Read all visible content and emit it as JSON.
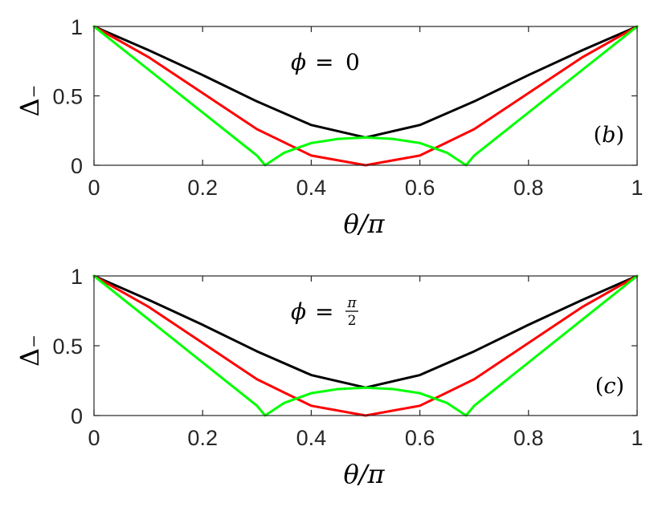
{
  "chart_data": [
    {
      "type": "line",
      "panel_label": "(b)",
      "annotation": {
        "lhs": "ϕ",
        "relation": "=",
        "value": "0"
      },
      "xlabel": "θ/π",
      "ylabel": "Δ₋",
      "xlim": [
        0,
        1
      ],
      "ylim": [
        0,
        1
      ],
      "x_ticks": [
        0,
        0.2,
        0.4,
        0.6,
        0.8,
        1
      ],
      "x_tick_labels": [
        "0",
        "0.2",
        "0.4",
        "0.6",
        "0.8",
        "1"
      ],
      "y_ticks": [
        0,
        0.5,
        1
      ],
      "y_tick_labels": [
        "0",
        "0.5",
        "1"
      ],
      "grid": false,
      "series": [
        {
          "color": "#000000",
          "x": [
            0,
            0.1,
            0.2,
            0.3,
            0.4,
            0.5,
            0.6,
            0.7,
            0.8,
            0.9,
            1
          ],
          "y": [
            1,
            0.83,
            0.65,
            0.46,
            0.29,
            0.2,
            0.29,
            0.46,
            0.65,
            0.83,
            1
          ]
        },
        {
          "color": "#ff0000",
          "x": [
            0,
            0.1,
            0.2,
            0.3,
            0.4,
            0.5,
            0.6,
            0.7,
            0.8,
            0.9,
            1
          ],
          "y": [
            1,
            0.78,
            0.52,
            0.26,
            0.07,
            0.0,
            0.07,
            0.26,
            0.52,
            0.78,
            1
          ]
        },
        {
          "color": "#00ff00",
          "x": [
            0,
            0.1,
            0.2,
            0.3,
            0.315,
            0.35,
            0.4,
            0.45,
            0.5,
            0.55,
            0.6,
            0.65,
            0.685,
            0.7,
            0.8,
            0.9,
            1
          ],
          "y": [
            1,
            0.69,
            0.38,
            0.07,
            0.0,
            0.09,
            0.16,
            0.19,
            0.2,
            0.19,
            0.16,
            0.09,
            0.0,
            0.07,
            0.38,
            0.69,
            1
          ]
        }
      ]
    },
    {
      "type": "line",
      "panel_label": "(c)",
      "annotation": {
        "lhs": "ϕ",
        "relation": "=",
        "numerator": "π",
        "denominator": "2"
      },
      "xlabel": "θ/π",
      "ylabel": "Δ₋",
      "xlim": [
        0,
        1
      ],
      "ylim": [
        0,
        1
      ],
      "x_ticks": [
        0,
        0.2,
        0.4,
        0.6,
        0.8,
        1
      ],
      "x_tick_labels": [
        "0",
        "0.2",
        "0.4",
        "0.6",
        "0.8",
        "1"
      ],
      "y_ticks": [
        0,
        0.5,
        1
      ],
      "y_tick_labels": [
        "0",
        "0.5",
        "1"
      ],
      "grid": false,
      "series": [
        {
          "color": "#000000",
          "x": [
            0,
            0.1,
            0.2,
            0.3,
            0.4,
            0.5,
            0.6,
            0.7,
            0.8,
            0.9,
            1
          ],
          "y": [
            1,
            0.83,
            0.65,
            0.46,
            0.29,
            0.2,
            0.29,
            0.46,
            0.65,
            0.83,
            1
          ]
        },
        {
          "color": "#ff0000",
          "x": [
            0,
            0.1,
            0.2,
            0.3,
            0.4,
            0.5,
            0.6,
            0.7,
            0.8,
            0.9,
            1
          ],
          "y": [
            1,
            0.78,
            0.52,
            0.26,
            0.07,
            0.0,
            0.07,
            0.26,
            0.52,
            0.78,
            1
          ]
        },
        {
          "color": "#00ff00",
          "x": [
            0,
            0.1,
            0.2,
            0.3,
            0.315,
            0.35,
            0.4,
            0.45,
            0.5,
            0.55,
            0.6,
            0.65,
            0.685,
            0.7,
            0.8,
            0.9,
            1
          ],
          "y": [
            1,
            0.69,
            0.38,
            0.07,
            0.0,
            0.09,
            0.16,
            0.19,
            0.2,
            0.19,
            0.16,
            0.09,
            0.0,
            0.07,
            0.38,
            0.69,
            1
          ]
        }
      ]
    }
  ]
}
